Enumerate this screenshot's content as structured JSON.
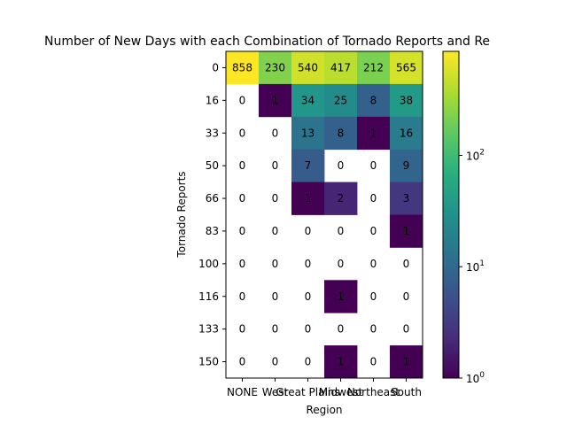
{
  "chart_data": {
    "type": "heatmap",
    "title": "Number of New Days with each Combination of Tornado Reports and Re",
    "xlabel": "Region",
    "ylabel": "Tornado Reports",
    "x_categories": [
      "NONE",
      "West",
      "Great Plains",
      "Midwest",
      "Northeast",
      "South"
    ],
    "x_tick_labels_shown": [
      "NONE",
      "West",
      "Great",
      "Plains",
      "Midwest",
      "Northeast",
      "South"
    ],
    "y_categories": [
      "0",
      "16",
      "33",
      "50",
      "66",
      "83",
      "100",
      "116",
      "133",
      "150"
    ],
    "values": [
      [
        858,
        230,
        540,
        417,
        212,
        565
      ],
      [
        0,
        1,
        34,
        25,
        8,
        38
      ],
      [
        0,
        0,
        13,
        8,
        1,
        16
      ],
      [
        0,
        0,
        7,
        0,
        0,
        9
      ],
      [
        0,
        0,
        1,
        2,
        0,
        3
      ],
      [
        0,
        0,
        0,
        0,
        0,
        1
      ],
      [
        0,
        0,
        0,
        0,
        0,
        0
      ],
      [
        0,
        0,
        0,
        1,
        0,
        0
      ],
      [
        0,
        0,
        0,
        0,
        0,
        0
      ],
      [
        0,
        0,
        0,
        1,
        0,
        1
      ]
    ],
    "color_scale": "log",
    "colormap": "viridis",
    "zero_cells": "blank (white)",
    "colorbar": {
      "min": 1,
      "max": 858,
      "ticks": [
        {
          "value": 1,
          "label": "10^0"
        },
        {
          "value": 10,
          "label": "10^1"
        },
        {
          "value": 100,
          "label": "10^2"
        }
      ]
    },
    "grid": false
  }
}
